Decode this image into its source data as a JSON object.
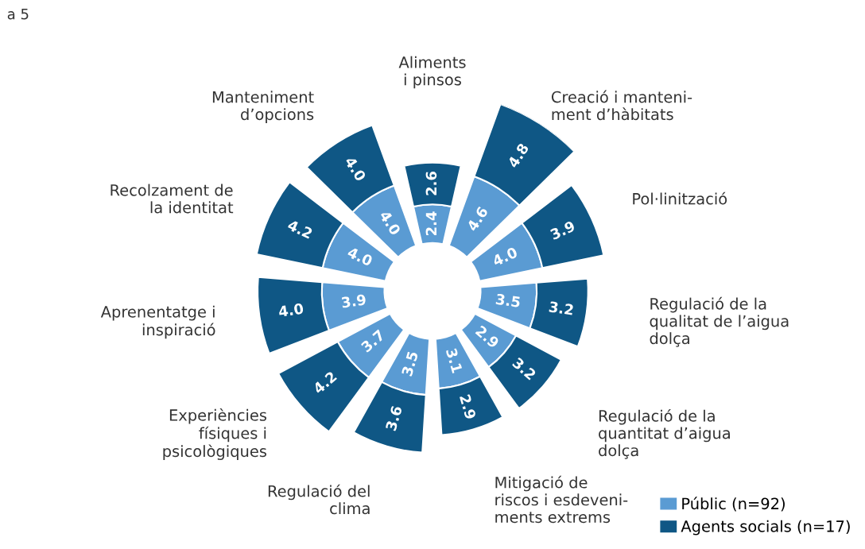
{
  "chart_data": {
    "type": "other",
    "legend": "bottom right",
    "annotations": [
      "a 5"
    ],
    "categories": [
      "Aliments\ni pinsos",
      "Creació i manteni-\nment d’hàbitats",
      "Pol·linització",
      "Regulació de la\nqualitat de l’aigua\ndolça",
      "Regulació de la\nquantitat d’aigua\ndolça",
      "Mitigació de\nriscos i esdeveni-\nments extrems",
      "Regulació del\nclima",
      "Experiències\nfísiques i\npsicològiques",
      "Aprenentatge i\ninspiració",
      "Recolzament de\nla identitat",
      "Manteniment\nd’opcions"
    ],
    "series": [
      {
        "name": "Públic (n=92)",
        "color": "#5a9bd3",
        "values": [
          2.4,
          4.6,
          4.0,
          3.5,
          2.9,
          3.1,
          3.5,
          3.7,
          3.9,
          4.0,
          4.0
        ],
        "value_labels": [
          "2.4",
          "4.6",
          "4.0",
          "3.5",
          "2.9",
          "3.1",
          "3.5",
          "3.7",
          "3.9",
          "4.0",
          "4.0"
        ]
      },
      {
        "name": "Agents socials (n=17)",
        "color": "#0f5785",
        "values": [
          2.6,
          4.8,
          3.9,
          3.2,
          3.2,
          2.9,
          3.6,
          4.2,
          4.0,
          4.2,
          4.0
        ],
        "value_labels": [
          "2.6",
          "4.8",
          "3.9",
          "3.2",
          "3.2",
          "2.9",
          "3.6",
          "4.2",
          "4.0",
          "4.2",
          "4.0"
        ]
      }
    ]
  }
}
